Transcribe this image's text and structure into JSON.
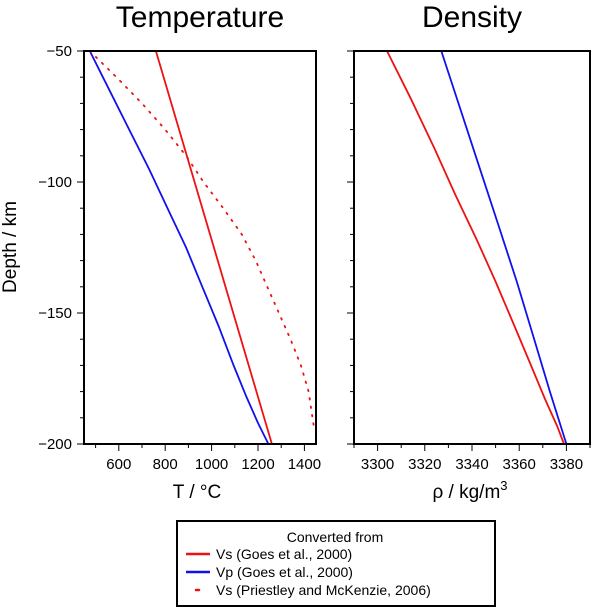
{
  "chart_data": [
    {
      "type": "line",
      "title": "Temperature",
      "xlabel": "T / °C",
      "ylabel": "Depth / km",
      "xlim": [
        450,
        1450
      ],
      "ylim": [
        -200,
        -50
      ],
      "xticks": [
        600,
        800,
        1000,
        1200,
        1400
      ],
      "yticks": [
        -50,
        -100,
        -150,
        -200
      ],
      "grid": false,
      "series": [
        {
          "name": "Vs (Goes et al., 2000)",
          "color": "#ee1111",
          "style": "solid",
          "x": [
            760,
            1260
          ],
          "y": [
            -50,
            -200
          ]
        },
        {
          "name": "Vp (Goes et al., 2000)",
          "color": "#1111ee",
          "style": "solid",
          "x": [
            475,
            560,
            645,
            730,
            810,
            890,
            960,
            1030,
            1095,
            1150,
            1200,
            1245
          ],
          "y": [
            -50,
            -65,
            -80,
            -95,
            -110,
            -125,
            -140,
            -155,
            -170,
            -182,
            -192,
            -200
          ]
        },
        {
          "name": "Vs (Priestley and McKenzie, 2006)",
          "color": "#ee1111",
          "style": "dotted",
          "x": [
            475,
            590,
            700,
            800,
            890,
            965,
            1050,
            1130,
            1190,
            1240,
            1290,
            1340,
            1385,
            1418,
            1440
          ],
          "y": [
            -50,
            -60,
            -70,
            -80,
            -90,
            -100,
            -110,
            -120,
            -130,
            -140,
            -150,
            -160,
            -170,
            -180,
            -193
          ]
        }
      ]
    },
    {
      "type": "line",
      "title": "Density",
      "xlabel": "ρ / kg/m",
      "xlabel_sup": "3",
      "ylim": [
        -200,
        -50
      ],
      "xlim": [
        3290,
        3390
      ],
      "xticks": [
        3300,
        3320,
        3340,
        3360,
        3380
      ],
      "yticks": [
        -50,
        -100,
        -150,
        -200
      ],
      "grid": false,
      "series": [
        {
          "name": "Vs (Goes et al., 2000)",
          "color": "#ee1111",
          "style": "solid",
          "x": [
            3304,
            3314,
            3324,
            3333,
            3342,
            3350,
            3358,
            3365,
            3371,
            3376,
            3379
          ],
          "y": [
            -50,
            -68,
            -87,
            -105,
            -122,
            -138,
            -155,
            -170,
            -183,
            -193,
            -200
          ]
        },
        {
          "name": "Vp (Goes et al., 2000)",
          "color": "#1111ee",
          "style": "solid",
          "x": [
            3327,
            3335,
            3343,
            3351,
            3359,
            3366,
            3373,
            3380
          ],
          "y": [
            -50,
            -72,
            -94,
            -116,
            -138,
            -159,
            -180,
            -200
          ]
        }
      ]
    }
  ],
  "legend": {
    "title": "Converted from",
    "placement": "bottom-center",
    "entries": [
      {
        "label": "Vs (Goes et al., 2000)",
        "color": "#ee1111",
        "style": "solid"
      },
      {
        "label": "Vp (Goes et al., 2000)",
        "color": "#1111ee",
        "style": "solid"
      },
      {
        "label": "Vs (Priestley and McKenzie, 2006)",
        "color": "#ee1111",
        "style": "dotted"
      }
    ]
  }
}
